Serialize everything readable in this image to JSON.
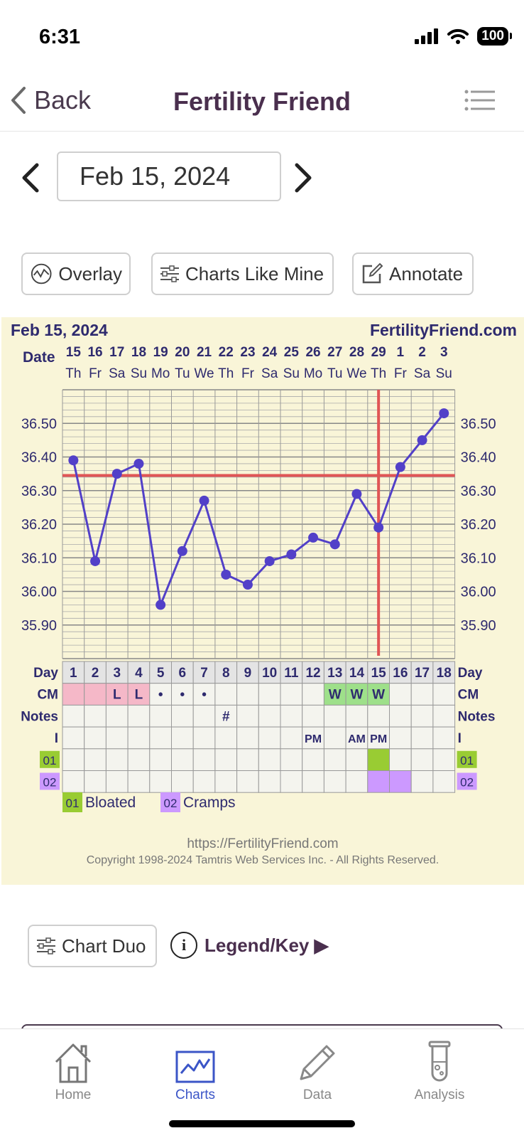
{
  "status": {
    "time": "6:31",
    "battery": "100"
  },
  "nav": {
    "back_label": "Back",
    "title": "Fertility Friend"
  },
  "date_picker": {
    "value": "Feb 15, 2024"
  },
  "tools": {
    "overlay": "Overlay",
    "charts_like_mine": "Charts Like Mine",
    "annotate": "Annotate"
  },
  "chart_data": {
    "type": "line",
    "title": "Feb 15, 2024",
    "brand": "FertilityFriend.com",
    "date_row_label": "Date",
    "dates": [
      "15",
      "16",
      "17",
      "18",
      "19",
      "20",
      "21",
      "22",
      "23",
      "24",
      "25",
      "26",
      "27",
      "28",
      "29",
      "1",
      "2",
      "3"
    ],
    "weekdays": [
      "Th",
      "Fr",
      "Sa",
      "Su",
      "Mo",
      "Tu",
      "We",
      "Th",
      "Fr",
      "Sa",
      "Su",
      "Mo",
      "Tu",
      "We",
      "Th",
      "Fr",
      "Sa",
      "Su"
    ],
    "y_ticks": [
      "36.50",
      "36.40",
      "36.30",
      "36.20",
      "36.10",
      "36.00",
      "35.90"
    ],
    "ylim": [
      35.8,
      36.6
    ],
    "values": [
      36.39,
      36.09,
      36.35,
      36.38,
      35.96,
      36.12,
      36.27,
      36.05,
      36.02,
      36.09,
      36.11,
      36.16,
      36.14,
      36.29,
      36.19,
      36.37,
      36.45,
      36.53
    ],
    "coverline": 36.345,
    "ovulation_day": 15,
    "line_color": "#5240c8",
    "coverline_color": "#e05555",
    "grid": true,
    "rows": {
      "day_label": "Day",
      "cm_label": "CM",
      "notes_label": "Notes",
      "i_label": "I",
      "o1_label": "01",
      "o2_label": "02",
      "days": [
        "1",
        "2",
        "3",
        "4",
        "5",
        "6",
        "7",
        "8",
        "9",
        "10",
        "11",
        "12",
        "13",
        "14",
        "15",
        "16",
        "17",
        "18"
      ],
      "cm": [
        "",
        "",
        "L",
        "L",
        "•",
        "•",
        "•",
        "",
        "",
        "",
        "",
        "",
        "W",
        "W",
        "W",
        "",
        "",
        ""
      ],
      "cm_colors": [
        "#f5b8c8",
        "#f5b8c8",
        "#f5b8c8",
        "#f5b8c8",
        "",
        "",
        "",
        "",
        "",
        "",
        "",
        "",
        "#9ee08a",
        "#9ee08a",
        "#9ee08a",
        "",
        "",
        ""
      ],
      "notes": [
        "",
        "",
        "",
        "",
        "",
        "",
        "",
        "#",
        "",
        "",
        "",
        "",
        "",
        "",
        "",
        "",
        "",
        ""
      ],
      "intercourse": [
        "",
        "",
        "",
        "",
        "",
        "",
        "",
        "",
        "",
        "",
        "",
        "PM",
        "",
        "AM",
        "PM",
        "",
        "",
        ""
      ],
      "o1": [
        14
      ],
      "o2": [
        14,
        15
      ]
    },
    "legend": [
      {
        "code": "01",
        "label": "Bloated",
        "color": "#99cc33"
      },
      {
        "code": "02",
        "label": "Cramps",
        "color": "#cc99ff"
      }
    ],
    "footer_url": "https://FertilityFriend.com",
    "copyright": "Copyright 1998-2024 Tamtris Web Services Inc. - All Rights Reserved."
  },
  "bottom": {
    "chart_duo": "Chart Duo",
    "legend_key": "Legend/Key ▶"
  },
  "tabs": [
    {
      "label": "Home",
      "icon": "home-icon"
    },
    {
      "label": "Charts",
      "icon": "charts-icon",
      "active": true
    },
    {
      "label": "Data",
      "icon": "pencil-icon"
    },
    {
      "label": "Analysis",
      "icon": "test-tube-icon"
    }
  ]
}
